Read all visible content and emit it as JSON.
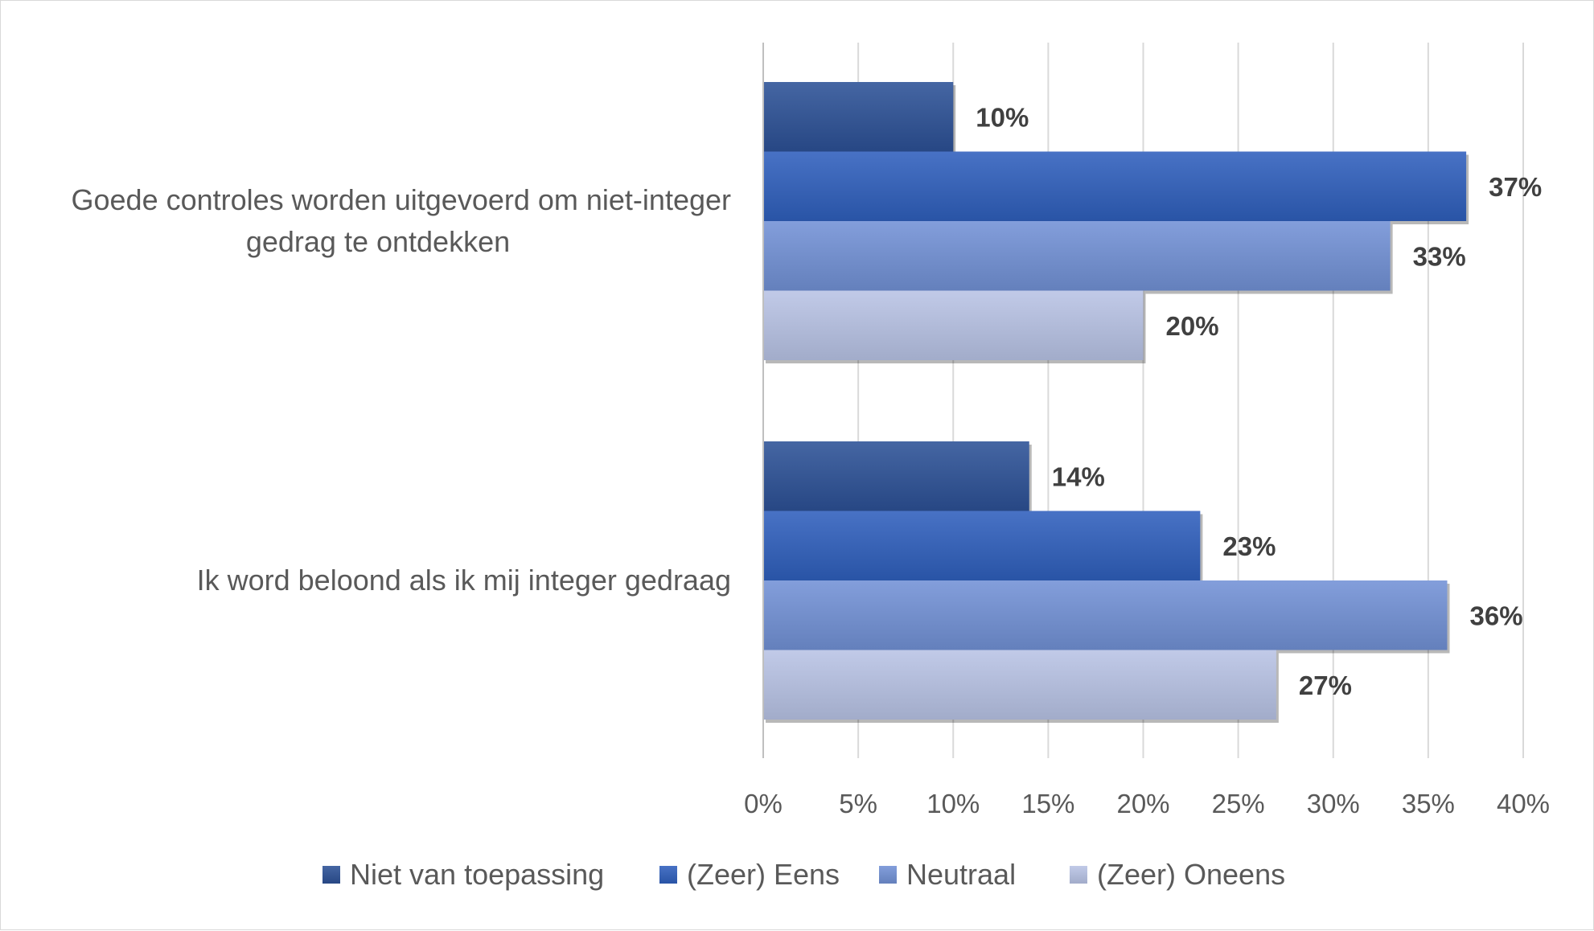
{
  "chart_data": {
    "type": "bar",
    "orientation": "horizontal",
    "title": "",
    "xlabel": "",
    "ylabel": "",
    "xlim": [
      0,
      40
    ],
    "x_ticks": [
      0,
      5,
      10,
      15,
      20,
      25,
      30,
      35,
      40
    ],
    "x_tick_labels": [
      "0%",
      "5%",
      "10%",
      "15%",
      "20%",
      "25%",
      "30%",
      "35%",
      "40%"
    ],
    "grid": true,
    "legend_position": "bottom",
    "categories": [
      [
        "Goede controles worden uitgevoerd om niet-integer",
        "gedrag te ontdekken"
      ],
      [
        "Ik word beloond als ik mij integer gedraag"
      ]
    ],
    "series": [
      {
        "name": "Niet van toepassing",
        "color": "#2c5196",
        "values": [
          10,
          14
        ],
        "labels": [
          "10%",
          "14%"
        ]
      },
      {
        "name": "(Zeer) Eens",
        "color": "#2f5fbd",
        "values": [
          37,
          23
        ],
        "labels": [
          "37%",
          "23%"
        ]
      },
      {
        "name": "Neutraal",
        "color": "#7291d6",
        "values": [
          33,
          36
        ],
        "labels": [
          "33%",
          "36%"
        ]
      },
      {
        "name": "(Zeer) Oneens",
        "color": "#b8c3e5",
        "values": [
          20,
          27
        ],
        "labels": [
          "20%",
          "27%"
        ]
      }
    ]
  }
}
